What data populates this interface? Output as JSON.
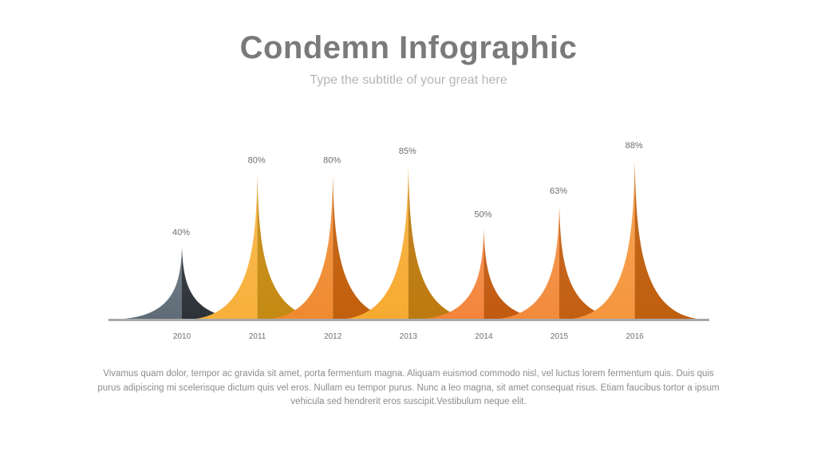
{
  "title": "Condemn Infographic",
  "subtitle": "Type the subtitle of your great here",
  "body_text": "Vivamus quam dolor, tempor ac gravida sit amet, porta fermentum magna. Aliquam euismod commodo nisl, vel luctus lorem fermentum quis. Duis quis purus adipiscing mi scelerisque dictum quis vel eros. Nullam eu tempor purus. Nunc a leo magna, sit amet consequat risus. Etiam faucibus tortor a ipsum vehicula sed hendrerit eros suscipit.Vestibulum neque elit.",
  "chart_data": {
    "type": "area",
    "categories": [
      "2010",
      "2011",
      "2012",
      "2013",
      "2014",
      "2015",
      "2016"
    ],
    "values": [
      40,
      80,
      80,
      85,
      50,
      63,
      88
    ],
    "value_labels": [
      "40%",
      "80%",
      "80%",
      "85%",
      "50%",
      "63%",
      "88%"
    ],
    "ylim": [
      0,
      100
    ],
    "grid": false,
    "legend": "none",
    "colors": [
      {
        "light": "#5e6b76",
        "dark": "#2c3238"
      },
      {
        "light": "#f7b03a",
        "dark": "#c48a12"
      },
      {
        "light": "#f08a30",
        "dark": "#c25f0c"
      },
      {
        "light": "#f7aa30",
        "dark": "#bd7a10"
      },
      {
        "light": "#f3843a",
        "dark": "#c25a10"
      },
      {
        "light": "#f28a3a",
        "dark": "#c35f12"
      },
      {
        "light": "#f5963e",
        "dark": "#bf5f0e"
      }
    ],
    "baseline_color": "#a8a8a8"
  }
}
